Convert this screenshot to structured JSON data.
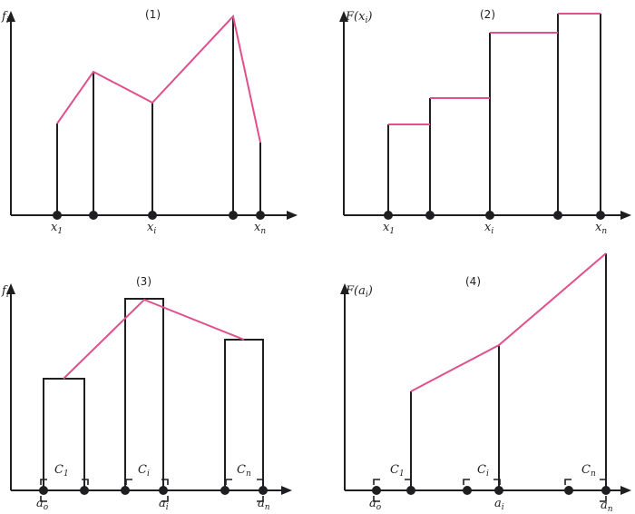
{
  "panel1": {
    "title": "(1)",
    "y_label": "f",
    "y_sub": "i",
    "x_labels": [
      {
        "base": "x",
        "sub": "1"
      },
      {
        "base": "x",
        "sub": "i"
      },
      {
        "base": "x",
        "sub": "n"
      }
    ]
  },
  "panel2": {
    "title": "(2)",
    "y_label": "F(x",
    "y_sub": "i",
    "y_close": ")",
    "x_labels": [
      {
        "base": "x",
        "sub": "1"
      },
      {
        "base": "x",
        "sub": "i"
      },
      {
        "base": "x",
        "sub": "n"
      }
    ]
  },
  "panel3": {
    "title": "(3)",
    "y_label": "f",
    "y_sub": "i",
    "class_labels": [
      {
        "base": "C",
        "sub": "1"
      },
      {
        "base": "C",
        "sub": "i"
      },
      {
        "base": "C",
        "sub": "n"
      }
    ],
    "x_labels": [
      {
        "base": "a",
        "sub": "o"
      },
      {
        "base": "a",
        "sub": "i"
      },
      {
        "base": "a",
        "sub": "n"
      }
    ]
  },
  "panel4": {
    "title": "(4)",
    "y_label": "F(a",
    "y_sub": "i",
    "y_close": ")",
    "class_labels": [
      {
        "base": "C",
        "sub": "1"
      },
      {
        "base": "C",
        "sub": "i"
      },
      {
        "base": "C",
        "sub": "n"
      }
    ],
    "x_labels": [
      {
        "base": "a",
        "sub": "o"
      },
      {
        "base": "a",
        "sub": "i"
      },
      {
        "base": "a",
        "sub": "n"
      }
    ]
  },
  "colors": {
    "ink": "#1f1f22",
    "accent": "#e0508c"
  }
}
